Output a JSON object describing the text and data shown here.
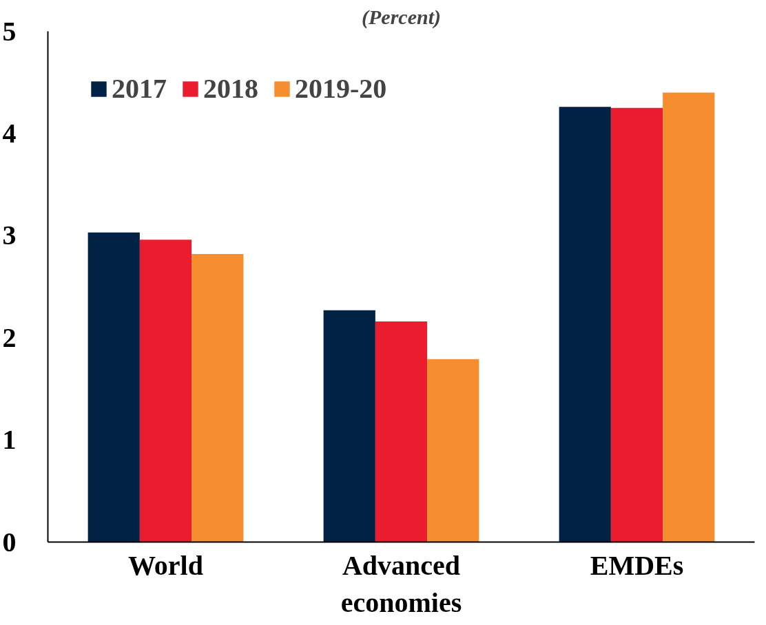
{
  "chart_data": {
    "type": "bar",
    "title": "(Percent)",
    "categories": [
      "World",
      "Advanced economies",
      "EMDEs"
    ],
    "series": [
      {
        "name": "2017",
        "color": "#002345",
        "values": [
          3.03,
          2.27,
          4.26
        ]
      },
      {
        "name": "2018",
        "color": "#eb1c2d",
        "values": [
          2.96,
          2.16,
          4.25
        ]
      },
      {
        "name": "2019-20",
        "color": "#f68d2e",
        "values": [
          2.82,
          1.79,
          4.4
        ]
      }
    ],
    "ylim": [
      0,
      5
    ],
    "yticks": [
      0,
      1,
      2,
      3,
      4,
      5
    ],
    "grid": false,
    "legend": "top left"
  }
}
